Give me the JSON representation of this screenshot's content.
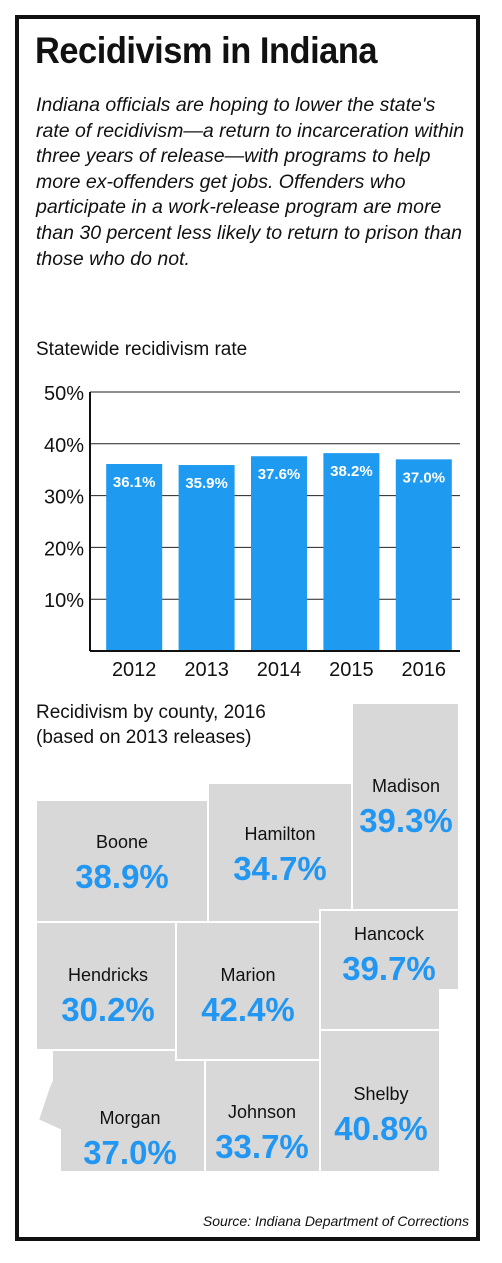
{
  "title": "Recidivism in Indiana",
  "intro": "Indiana officials are hoping to lower the state's rate of recidivism—a return to incarceration within three years of release—with programs to help more ex-offenders get jobs. Offenders who participate in a work-release program are more than 30 percent less likely to return to prison than those who do not.",
  "colors": {
    "bar": "#1e9bf0",
    "county_fill": "#d8d8d8",
    "county_value": "#2196f3"
  },
  "chart_data": [
    {
      "type": "bar",
      "title": "Statewide recidivism rate",
      "categories": [
        "2012",
        "2013",
        "2014",
        "2015",
        "2016"
      ],
      "values": [
        36.1,
        35.9,
        37.6,
        38.2,
        37.0
      ],
      "value_labels": [
        "36.1%",
        "35.9%",
        "37.6%",
        "38.2%",
        "37.0%"
      ],
      "yticks": [
        "10%",
        "20%",
        "30%",
        "40%",
        "50%"
      ],
      "ytick_values": [
        10,
        20,
        30,
        40,
        50
      ],
      "ylim": [
        0,
        50
      ],
      "grid": true
    },
    {
      "type": "table",
      "title": "Recidivism by county, 2016 (based on 2013 releases)",
      "title_lines": [
        "Recidivism by county, 2016",
        "(based on 2013 releases)"
      ],
      "counties": [
        {
          "name": "Boone",
          "value": "38.9%",
          "rate": 38.9
        },
        {
          "name": "Hamilton",
          "value": "34.7%",
          "rate": 34.7
        },
        {
          "name": "Madison",
          "value": "39.3%",
          "rate": 39.3
        },
        {
          "name": "Hendricks",
          "value": "30.2%",
          "rate": 30.2
        },
        {
          "name": "Marion",
          "value": "42.4%",
          "rate": 42.4
        },
        {
          "name": "Hancock",
          "value": "39.7%",
          "rate": 39.7
        },
        {
          "name": "Morgan",
          "value": "37.0%",
          "rate": 37.0
        },
        {
          "name": "Johnson",
          "value": "33.7%",
          "rate": 33.7
        },
        {
          "name": "Shelby",
          "value": "40.8%",
          "rate": 40.8
        }
      ]
    }
  ],
  "source": "Source: Indiana Department of Corrections"
}
